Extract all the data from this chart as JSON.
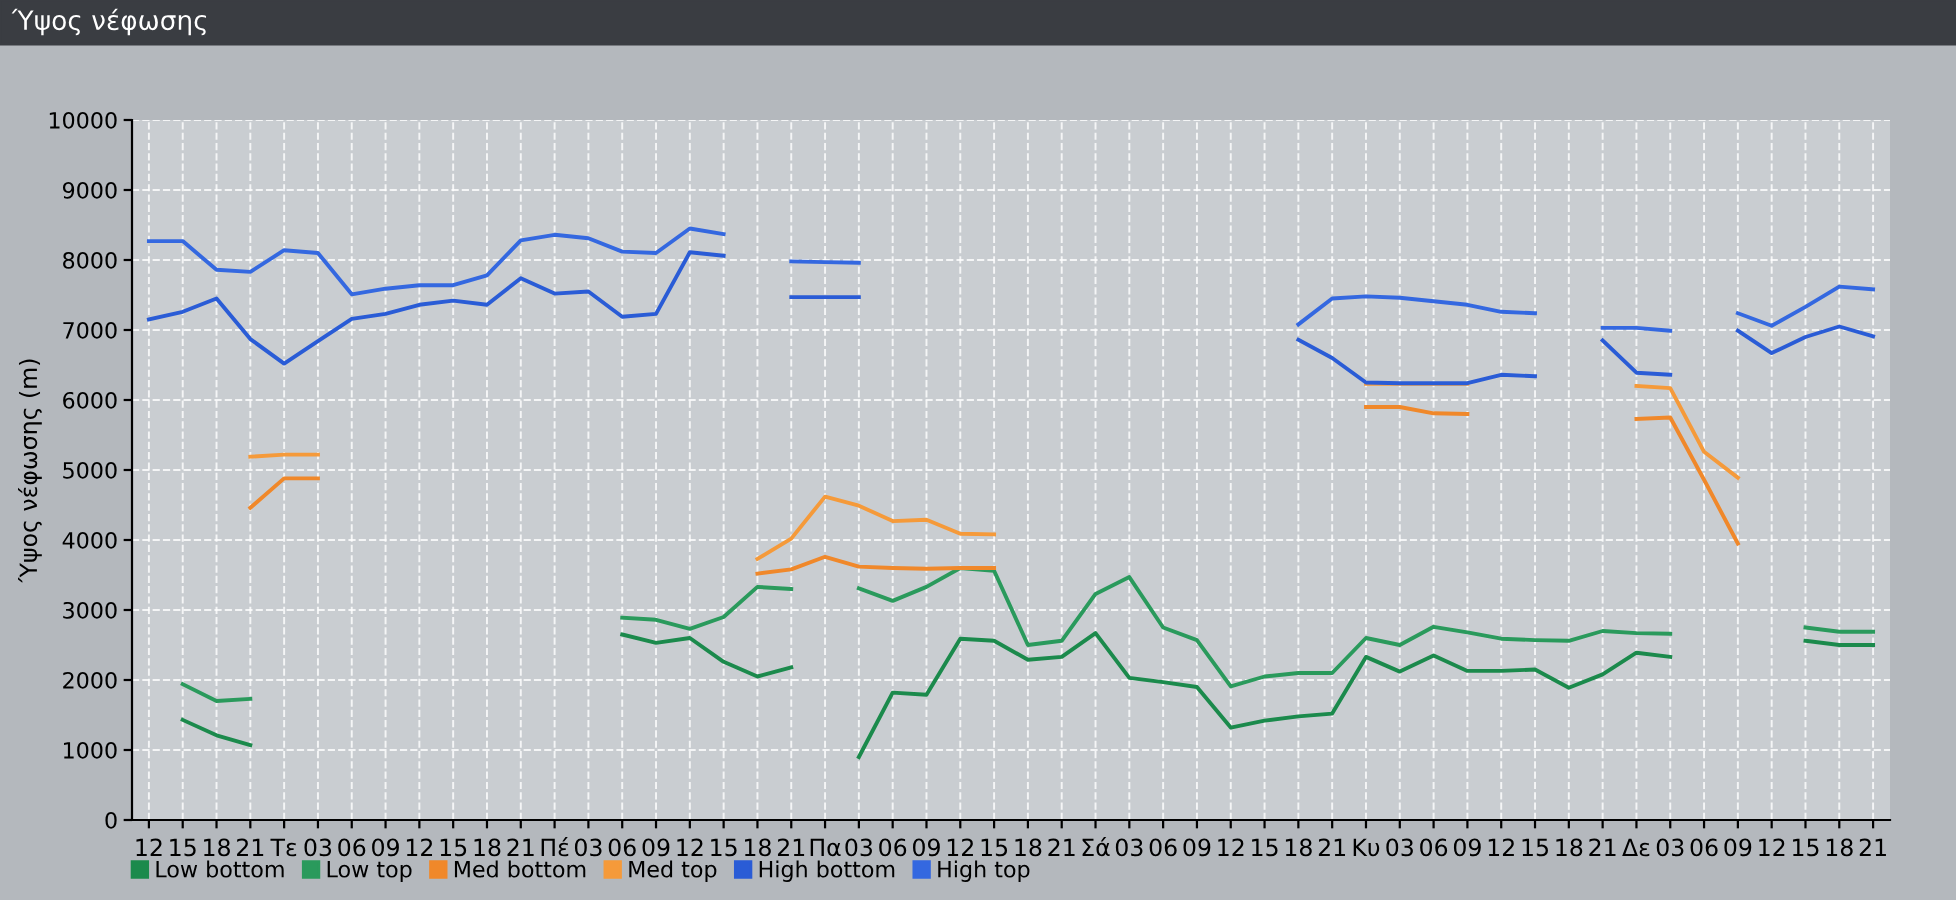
{
  "chart_data": {
    "type": "line",
    "title": "Ύψος νέφωσης",
    "ylabel": "Ύψος νέφωσης (m)",
    "categories": [
      "12",
      "15",
      "18",
      "21",
      "Τε",
      "03",
      "06",
      "09",
      "12",
      "15",
      "18",
      "21",
      "Πέ",
      "03",
      "06",
      "09",
      "12",
      "15",
      "18",
      "21",
      "Πα",
      "03",
      "06",
      "09",
      "12",
      "15",
      "18",
      "21",
      "Σά",
      "03",
      "06",
      "09",
      "12",
      "15",
      "18",
      "21",
      "Κυ",
      "03",
      "06",
      "09",
      "12",
      "15",
      "18",
      "21",
      "Δε",
      "03",
      "06",
      "09",
      "12",
      "15",
      "18",
      "21"
    ],
    "series": [
      {
        "name": "Low bottom",
        "color": "#1b8a4c",
        "values": [
          null,
          1430,
          1210,
          1070,
          null,
          null,
          null,
          null,
          null,
          null,
          null,
          null,
          null,
          null,
          2650,
          2530,
          2600,
          2260,
          2050,
          2180,
          null,
          900,
          1820,
          1790,
          2590,
          2560,
          2290,
          2330,
          2670,
          2030,
          1970,
          1900,
          1320,
          1420,
          1480,
          1520,
          2330,
          2120,
          2350,
          2130,
          2130,
          2150,
          1890,
          2080,
          2390,
          2330,
          null,
          null,
          null,
          2560,
          2500,
          2500
        ]
      },
      {
        "name": "Low top",
        "color": "#2a9a5c",
        "values": [
          null,
          1940,
          1700,
          1730,
          null,
          null,
          null,
          null,
          null,
          null,
          null,
          null,
          null,
          null,
          2890,
          2860,
          2730,
          2900,
          3330,
          3300,
          null,
          3310,
          3130,
          3330,
          3600,
          3560,
          2500,
          2560,
          3230,
          3470,
          2750,
          2570,
          1910,
          2050,
          2100,
          2100,
          2600,
          2500,
          2760,
          2680,
          2590,
          2570,
          2560,
          2700,
          2670,
          2660,
          null,
          null,
          null,
          2750,
          2690,
          2690
        ]
      },
      {
        "name": "Med bottom",
        "color": "#f0882a",
        "values": [
          null,
          null,
          null,
          4460,
          4880,
          4880,
          null,
          null,
          null,
          null,
          null,
          null,
          null,
          null,
          null,
          null,
          null,
          null,
          3520,
          3580,
          3760,
          3620,
          3600,
          3590,
          3600,
          3600,
          null,
          null,
          null,
          null,
          null,
          null,
          null,
          null,
          null,
          null,
          5900,
          5900,
          5810,
          5800,
          null,
          null,
          null,
          null,
          5730,
          5750,
          4860,
          3950,
          null,
          null,
          null,
          null
        ]
      },
      {
        "name": "Med top",
        "color": "#f59a3a",
        "values": [
          null,
          null,
          null,
          5190,
          5220,
          5220,
          null,
          null,
          null,
          null,
          null,
          null,
          null,
          null,
          null,
          null,
          null,
          null,
          3730,
          4020,
          4620,
          4490,
          4270,
          4290,
          4090,
          4080,
          null,
          null,
          null,
          null,
          null,
          null,
          null,
          null,
          null,
          null,
          6230,
          6230,
          6230,
          6230,
          null,
          null,
          null,
          null,
          6200,
          6170,
          5260,
          4890,
          null,
          null,
          null,
          null
        ]
      },
      {
        "name": "High bottom",
        "color": "#2a5cd6",
        "values": [
          7150,
          7260,
          7450,
          6870,
          6520,
          6840,
          7160,
          7230,
          7360,
          7420,
          7360,
          7740,
          7520,
          7550,
          7190,
          7230,
          8110,
          8060,
          null,
          7470,
          7470,
          7470,
          null,
          null,
          null,
          null,
          null,
          null,
          null,
          null,
          null,
          null,
          null,
          null,
          6860,
          6600,
          6250,
          6240,
          6240,
          6240,
          6360,
          6340,
          null,
          6850,
          6390,
          6360,
          null,
          6990,
          6670,
          6900,
          7050,
          6910
        ]
      },
      {
        "name": "High top",
        "color": "#3468e0",
        "values": [
          8270,
          8270,
          7860,
          7830,
          8140,
          8100,
          7510,
          7590,
          7640,
          7640,
          7780,
          8280,
          8360,
          8310,
          8120,
          8100,
          8450,
          8370,
          null,
          7980,
          7970,
          7960,
          null,
          null,
          null,
          null,
          null,
          null,
          null,
          null,
          null,
          null,
          null,
          null,
          7080,
          7450,
          7480,
          7460,
          7410,
          7360,
          7260,
          7240,
          null,
          7030,
          7030,
          6990,
          null,
          7240,
          7060,
          7330,
          7620,
          7580
        ]
      }
    ],
    "ylim": [
      0,
      10000
    ],
    "yticks": [
      0,
      1000,
      2000,
      3000,
      4000,
      5000,
      6000,
      7000,
      8000,
      9000,
      10000
    ],
    "grid": true,
    "legend": "bottom",
    "marker": "none",
    "line_style": "solid"
  }
}
